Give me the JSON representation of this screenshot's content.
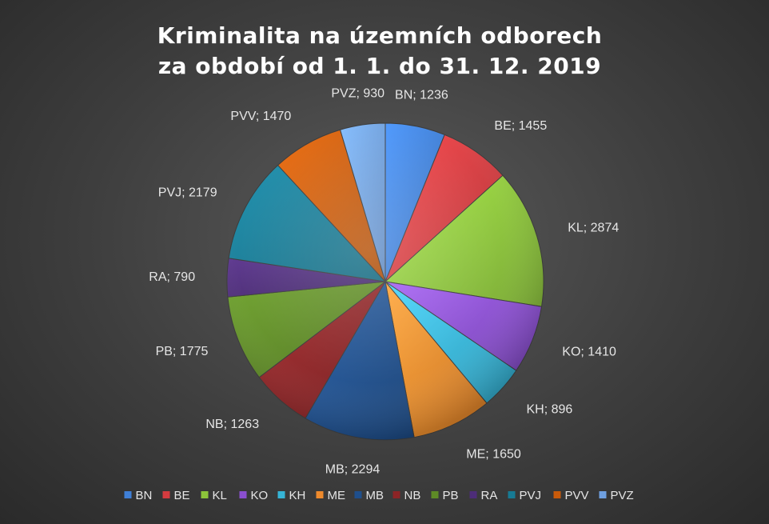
{
  "chart_data": {
    "type": "pie",
    "title_lines": [
      "Kriminalita na územních odborech",
      "za období od 1. 1. do 31. 12. 2019"
    ],
    "legend_position": "bottom",
    "slices": [
      {
        "name": "BN",
        "value": 1236,
        "color": "#3f7fd6"
      },
      {
        "name": "BE",
        "value": 1455,
        "color": "#d33b3f"
      },
      {
        "name": "KL",
        "value": 2874,
        "color": "#8cc43a"
      },
      {
        "name": "KO",
        "value": 1410,
        "color": "#8a4fcf"
      },
      {
        "name": "KH",
        "value": 896,
        "color": "#36b4d6"
      },
      {
        "name": "ME",
        "value": 1650,
        "color": "#ee8a2c"
      },
      {
        "name": "MB",
        "value": 2294,
        "color": "#1f4f8c"
      },
      {
        "name": "NB",
        "value": 1263,
        "color": "#8c2426"
      },
      {
        "name": "PB",
        "value": 1775,
        "color": "#5e8a26"
      },
      {
        "name": "RA",
        "value": 790,
        "color": "#4d2d78"
      },
      {
        "name": "PVJ",
        "value": 2179,
        "color": "#177a94"
      },
      {
        "name": "PVV",
        "value": 1470,
        "color": "#c85a0a"
      },
      {
        "name": "PVZ",
        "value": 930,
        "color": "#6e9fe0"
      }
    ]
  }
}
